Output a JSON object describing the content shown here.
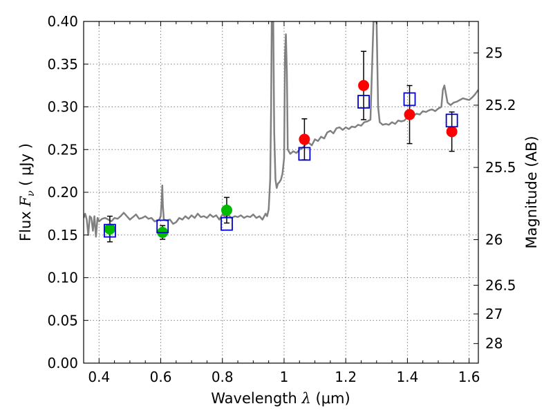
{
  "chart_data": {
    "type": "scatter",
    "title": "",
    "xlabel_prefix": "Wavelength  ",
    "xlabel_symbol": "λ",
    "xlabel_unit": " (μm)",
    "ylabel_prefix": "Flux  ",
    "ylabel_symbol": "F",
    "ylabel_sub": "ν",
    "ylabel_unit": "  ( μJy )",
    "y2label": "Magnitude (AB)",
    "xlim": [
      0.35,
      1.63
    ],
    "ylim": [
      0.0,
      0.4
    ],
    "xticks": [
      0.4,
      0.6,
      0.8,
      1.0,
      1.2,
      1.4,
      1.6
    ],
    "xtick_labels": [
      "0.4",
      "0.6",
      "0.8",
      "1",
      "1.2",
      "1.4",
      "1.6"
    ],
    "yticks": [
      0.0,
      0.05,
      0.1,
      0.15,
      0.2,
      0.25,
      0.3,
      0.35,
      0.4
    ],
    "ytick_labels": [
      "0.00",
      "0.05",
      "0.10",
      "0.15",
      "0.20",
      "0.25",
      "0.30",
      "0.35",
      "0.40"
    ],
    "y2ticks": [
      25,
      25.2,
      25.5,
      26,
      26.5,
      27,
      28
    ],
    "y2tick_labels": [
      "25",
      "25.2",
      "25.5",
      "26",
      "26.5",
      "27",
      "28"
    ],
    "grid": true,
    "colors": {
      "template": "#808080",
      "green_points": "#00bb00",
      "red_points": "#ff0000",
      "model_boxes": "#0000cc",
      "errorbars": "#000000"
    },
    "series": [
      {
        "kind": "line",
        "role": "template-spectrum",
        "points": [
          [
            0.35,
            0.17
          ],
          [
            0.355,
            0.175
          ],
          [
            0.36,
            0.168
          ],
          [
            0.365,
            0.15
          ],
          [
            0.37,
            0.172
          ],
          [
            0.375,
            0.17
          ],
          [
            0.38,
            0.155
          ],
          [
            0.385,
            0.172
          ],
          [
            0.39,
            0.148
          ],
          [
            0.395,
            0.17
          ],
          [
            0.4,
            0.166
          ],
          [
            0.41,
            0.169
          ],
          [
            0.42,
            0.17
          ],
          [
            0.43,
            0.168
          ],
          [
            0.44,
            0.166
          ],
          [
            0.45,
            0.17
          ],
          [
            0.46,
            0.169
          ],
          [
            0.47,
            0.172
          ],
          [
            0.48,
            0.176
          ],
          [
            0.49,
            0.172
          ],
          [
            0.5,
            0.168
          ],
          [
            0.51,
            0.171
          ],
          [
            0.52,
            0.174
          ],
          [
            0.53,
            0.169
          ],
          [
            0.54,
            0.17
          ],
          [
            0.55,
            0.172
          ],
          [
            0.56,
            0.169
          ],
          [
            0.57,
            0.17
          ],
          [
            0.58,
            0.166
          ],
          [
            0.59,
            0.167
          ],
          [
            0.595,
            0.168
          ],
          [
            0.6,
            0.172
          ],
          [
            0.603,
            0.19
          ],
          [
            0.605,
            0.208
          ],
          [
            0.607,
            0.185
          ],
          [
            0.61,
            0.168
          ],
          [
            0.62,
            0.167
          ],
          [
            0.63,
            0.168
          ],
          [
            0.64,
            0.163
          ],
          [
            0.65,
            0.165
          ],
          [
            0.66,
            0.17
          ],
          [
            0.67,
            0.168
          ],
          [
            0.68,
            0.172
          ],
          [
            0.69,
            0.169
          ],
          [
            0.7,
            0.173
          ],
          [
            0.71,
            0.17
          ],
          [
            0.72,
            0.175
          ],
          [
            0.73,
            0.171
          ],
          [
            0.74,
            0.172
          ],
          [
            0.75,
            0.17
          ],
          [
            0.76,
            0.174
          ],
          [
            0.77,
            0.171
          ],
          [
            0.78,
            0.173
          ],
          [
            0.79,
            0.168
          ],
          [
            0.8,
            0.174
          ],
          [
            0.81,
            0.171
          ],
          [
            0.82,
            0.173
          ],
          [
            0.83,
            0.17
          ],
          [
            0.84,
            0.172
          ],
          [
            0.85,
            0.171
          ],
          [
            0.86,
            0.173
          ],
          [
            0.87,
            0.17
          ],
          [
            0.88,
            0.172
          ],
          [
            0.89,
            0.171
          ],
          [
            0.9,
            0.174
          ],
          [
            0.91,
            0.17
          ],
          [
            0.92,
            0.172
          ],
          [
            0.93,
            0.168
          ],
          [
            0.94,
            0.175
          ],
          [
            0.945,
            0.172
          ],
          [
            0.95,
            0.18
          ],
          [
            0.955,
            0.215
          ],
          [
            0.958,
            0.3
          ],
          [
            0.96,
            0.4
          ],
          [
            0.965,
            0.4
          ],
          [
            0.968,
            0.27
          ],
          [
            0.972,
            0.215
          ],
          [
            0.976,
            0.205
          ],
          [
            0.98,
            0.21
          ],
          [
            0.985,
            0.212
          ],
          [
            0.99,
            0.215
          ],
          [
            0.995,
            0.222
          ],
          [
            1.0,
            0.24
          ],
          [
            1.003,
            0.36
          ],
          [
            1.006,
            0.385
          ],
          [
            1.009,
            0.34
          ],
          [
            1.012,
            0.25
          ],
          [
            1.02,
            0.245
          ],
          [
            1.03,
            0.248
          ],
          [
            1.04,
            0.246
          ],
          [
            1.05,
            0.25
          ],
          [
            1.06,
            0.252
          ],
          [
            1.07,
            0.256
          ],
          [
            1.08,
            0.258
          ],
          [
            1.09,
            0.255
          ],
          [
            1.1,
            0.262
          ],
          [
            1.11,
            0.26
          ],
          [
            1.12,
            0.265
          ],
          [
            1.13,
            0.263
          ],
          [
            1.14,
            0.27
          ],
          [
            1.15,
            0.272
          ],
          [
            1.16,
            0.269
          ],
          [
            1.17,
            0.275
          ],
          [
            1.18,
            0.276
          ],
          [
            1.19,
            0.273
          ],
          [
            1.2,
            0.276
          ],
          [
            1.21,
            0.274
          ],
          [
            1.22,
            0.277
          ],
          [
            1.23,
            0.276
          ],
          [
            1.24,
            0.279
          ],
          [
            1.25,
            0.278
          ],
          [
            1.26,
            0.282
          ],
          [
            1.27,
            0.283
          ],
          [
            1.28,
            0.285
          ],
          [
            1.29,
            0.4
          ],
          [
            1.3,
            0.4
          ],
          [
            1.305,
            0.3
          ],
          [
            1.31,
            0.282
          ],
          [
            1.32,
            0.279
          ],
          [
            1.33,
            0.28
          ],
          [
            1.34,
            0.279
          ],
          [
            1.35,
            0.282
          ],
          [
            1.36,
            0.28
          ],
          [
            1.37,
            0.284
          ],
          [
            1.38,
            0.283
          ],
          [
            1.39,
            0.284
          ],
          [
            1.4,
            0.288
          ],
          [
            1.41,
            0.289
          ],
          [
            1.42,
            0.29
          ],
          [
            1.43,
            0.292
          ],
          [
            1.44,
            0.291
          ],
          [
            1.45,
            0.295
          ],
          [
            1.46,
            0.294
          ],
          [
            1.47,
            0.296
          ],
          [
            1.48,
            0.297
          ],
          [
            1.49,
            0.295
          ],
          [
            1.5,
            0.298
          ],
          [
            1.51,
            0.3
          ],
          [
            1.515,
            0.32
          ],
          [
            1.52,
            0.325
          ],
          [
            1.53,
            0.305
          ],
          [
            1.54,
            0.302
          ],
          [
            1.55,
            0.305
          ],
          [
            1.56,
            0.306
          ],
          [
            1.57,
            0.308
          ],
          [
            1.58,
            0.31
          ],
          [
            1.59,
            0.309
          ],
          [
            1.6,
            0.308
          ],
          [
            1.61,
            0.311
          ],
          [
            1.62,
            0.315
          ],
          [
            1.63,
            0.32
          ]
        ]
      },
      {
        "kind": "errorbar",
        "role": "green-observed",
        "points": [
          {
            "x": 0.435,
            "y": 0.157,
            "err": 0.015
          },
          {
            "x": 0.606,
            "y": 0.153,
            "err": 0.008
          },
          {
            "x": 0.814,
            "y": 0.179,
            "err": 0.015
          }
        ]
      },
      {
        "kind": "errorbar",
        "role": "red-observed",
        "points": [
          {
            "x": 1.066,
            "y": 0.262,
            "err": 0.024
          },
          {
            "x": 1.258,
            "y": 0.325,
            "err": 0.04
          },
          {
            "x": 1.407,
            "y": 0.291,
            "err": 0.034
          },
          {
            "x": 1.544,
            "y": 0.271,
            "err": 0.023
          }
        ]
      },
      {
        "kind": "boxes",
        "role": "model-photometry",
        "points": [
          {
            "x": 0.435,
            "y": 0.155
          },
          {
            "x": 0.606,
            "y": 0.16
          },
          {
            "x": 0.814,
            "y": 0.163
          },
          {
            "x": 1.066,
            "y": 0.245
          },
          {
            "x": 1.258,
            "y": 0.306
          },
          {
            "x": 1.407,
            "y": 0.309
          },
          {
            "x": 1.544,
            "y": 0.284
          }
        ]
      }
    ]
  }
}
